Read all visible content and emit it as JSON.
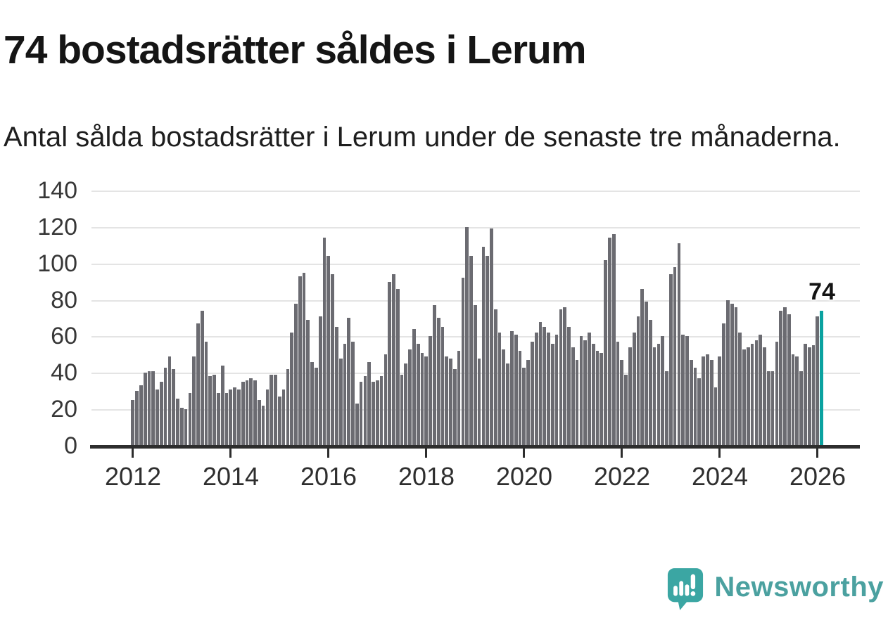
{
  "header": {
    "title": "74 bostadsrätter såldes i Lerum",
    "subtitle": "Antal sålda bostadsrätter i Lerum under de senaste tre månaderna."
  },
  "annotation": {
    "value_label": "74"
  },
  "chart_data": {
    "type": "bar",
    "title": "74 bostadsrätter såldes i Lerum",
    "xlabel": "",
    "ylabel": "",
    "x_start": "2012-01",
    "x_end": "2026-02",
    "frequency": "monthly",
    "ylim": [
      0,
      140
    ],
    "y_ticks": [
      0,
      20,
      40,
      60,
      80,
      100,
      120,
      140
    ],
    "x_tick_labels": [
      "2012",
      "2014",
      "2016",
      "2018",
      "2020",
      "2022",
      "2024",
      "2026"
    ],
    "grid": "horizontal",
    "legend": "none",
    "series": [
      {
        "name": "Antal sålda bostadsrätter (rullande tre månader)",
        "values": [
          25,
          30,
          33,
          40,
          41,
          41,
          31,
          35,
          43,
          49,
          42,
          26,
          21,
          20,
          29,
          49,
          67,
          74,
          57,
          38,
          39,
          29,
          44,
          29,
          31,
          32,
          31,
          35,
          36,
          37,
          36,
          25,
          22,
          31,
          39,
          39,
          27,
          31,
          42,
          62,
          78,
          93,
          95,
          69,
          46,
          43,
          71,
          114,
          104,
          94,
          65,
          48,
          56,
          70,
          57,
          23,
          35,
          38,
          46,
          35,
          36,
          38,
          50,
          90,
          94,
          86,
          39,
          45,
          53,
          64,
          56,
          51,
          49,
          60,
          77,
          70,
          65,
          49,
          48,
          42,
          52,
          92,
          120,
          104,
          77,
          48,
          109,
          104,
          119,
          75,
          62,
          53,
          45,
          63,
          61,
          52,
          43,
          47,
          57,
          62,
          68,
          65,
          62,
          56,
          61,
          75,
          76,
          65,
          54,
          47,
          60,
          58,
          62,
          56,
          52,
          51,
          102,
          114,
          116,
          57,
          47,
          39,
          54,
          62,
          71,
          86,
          79,
          69,
          54,
          56,
          60,
          41,
          94,
          98,
          111,
          61,
          60,
          47,
          43,
          37,
          49,
          50,
          47,
          32,
          49,
          67,
          80,
          78,
          76,
          62,
          53,
          54,
          56,
          58,
          61,
          54,
          41,
          41,
          57,
          74,
          76,
          72,
          50,
          49,
          41,
          56,
          54,
          55,
          71,
          74
        ]
      }
    ],
    "highlight_last_bar": true,
    "highlight_value": 74,
    "annotation_label": "74"
  },
  "footer": {
    "brand": "Newsworthy",
    "logo_icon": "newsworthy-speech-bubble-bar-chart-icon"
  },
  "colors": {
    "bar": "#6b6b71",
    "highlight": "#0aa2a0",
    "grid": "#e4e4e4",
    "axis": "#2d2d2d",
    "tick_label": "#373737",
    "title_text": "#151515",
    "brand_teal": "#4ba1a0",
    "logo_teal": "#3ba6a3"
  }
}
